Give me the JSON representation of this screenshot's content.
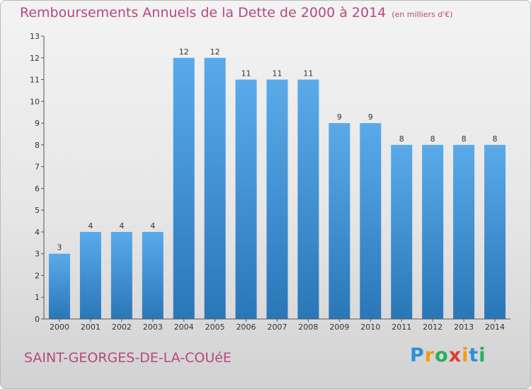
{
  "title": {
    "main": "Remboursements Annuels de la Dette de 2000 à 2014",
    "unit": "(en milliers d'€)"
  },
  "commune": "SAINT-GEORGES-DE-LA-COUéE",
  "logo": {
    "text": "Proxiti",
    "letters": [
      {
        "char": "P",
        "color": "#2c8fd8"
      },
      {
        "char": "r",
        "color": "#f39c12"
      },
      {
        "char": "o",
        "color": "#27ae60"
      },
      {
        "char": "x",
        "color": "#e23b2e"
      },
      {
        "char": "i",
        "color": "#f39c12"
      },
      {
        "char": "t",
        "color": "#2c8fd8"
      },
      {
        "char": "i",
        "color": "#27ae60"
      }
    ]
  },
  "colors": {
    "bar_light": "#5aaaea",
    "bar_dark": "#2a77b8",
    "title": "#b5497d"
  },
  "chart_data": {
    "type": "bar",
    "categories": [
      "2000",
      "2001",
      "2002",
      "2003",
      "2004",
      "2005",
      "2006",
      "2007",
      "2008",
      "2009",
      "2010",
      "2011",
      "2012",
      "2013",
      "2014"
    ],
    "values": [
      3,
      4,
      4,
      4,
      12,
      12,
      11,
      11,
      11,
      9,
      9,
      8,
      8,
      8,
      8
    ],
    "ylim": [
      0,
      13
    ],
    "yticks": [
      0,
      1,
      2,
      3,
      4,
      5,
      6,
      7,
      8,
      9,
      10,
      11,
      12,
      13
    ],
    "grid": false,
    "data_labels": true
  }
}
